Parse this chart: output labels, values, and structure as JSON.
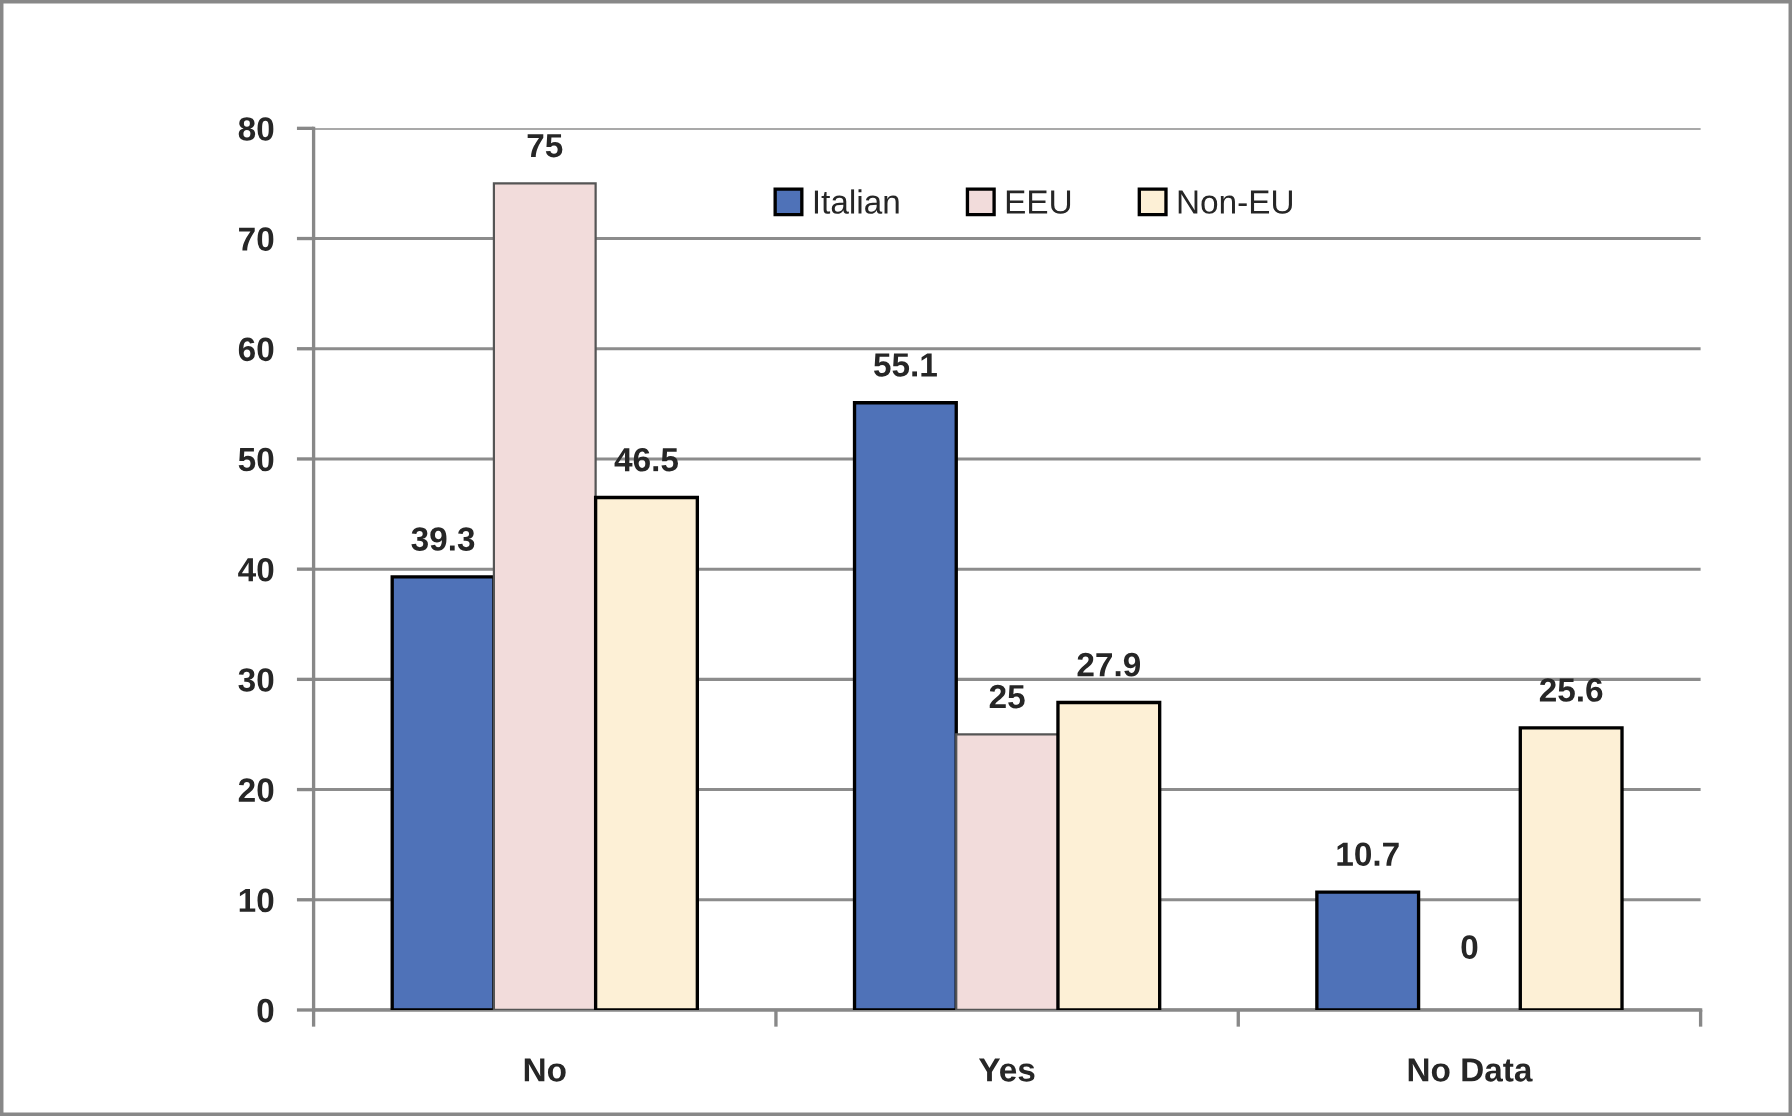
{
  "chart_data": {
    "type": "bar",
    "categories": [
      "No",
      "Yes",
      "No Data"
    ],
    "series": [
      {
        "name": "Italian",
        "color": "#4f72b8",
        "values": [
          39.3,
          55.1,
          10.7
        ]
      },
      {
        "name": "EEU",
        "color": "#f2dcdb",
        "values": [
          75,
          25,
          0
        ]
      },
      {
        "name": "Non-EU",
        "color": "#fdf0d6",
        "values": [
          46.5,
          27.9,
          25.6
        ]
      }
    ],
    "ylim": [
      0,
      80
    ],
    "yticks": [
      0,
      10,
      20,
      30,
      40,
      50,
      60,
      70,
      80
    ],
    "grid": "y",
    "legend": "top",
    "data_labels": true
  }
}
